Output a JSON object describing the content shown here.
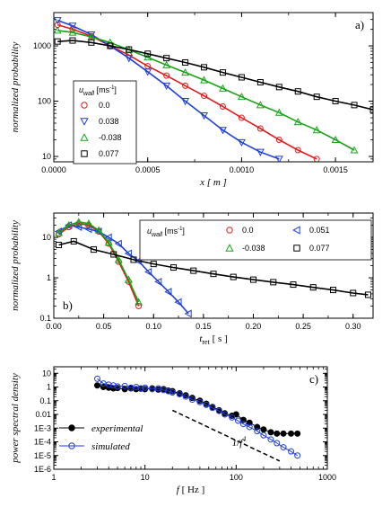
{
  "chart_data": [
    {
      "type": "scatter",
      "tag": "a)",
      "xlabel": "x [ m ]",
      "ylabel": "normalized probability",
      "xlim": [
        0,
        0.0017
      ],
      "ylim": [
        8,
        4000
      ],
      "yscale": "log",
      "xticks": [
        0,
        0.0005,
        0.001,
        0.0015
      ],
      "xticklabels": [
        "0.0000",
        "0.0005",
        "0.0010",
        "0.0015"
      ],
      "yticks": [
        10,
        100,
        1000
      ],
      "yticklabels": [
        "10",
        "100",
        "1000"
      ],
      "legend": {
        "title": "u_wall [ms-1]",
        "title_main": "u",
        "title_sub": "wall",
        "title_unit": "[ms",
        "title_sup": "-1",
        "title_close": "]",
        "position": "left-middle"
      },
      "series": [
        {
          "name": "0.0",
          "marker": "circle",
          "color": "#e11b1b",
          "x": [
            2e-05,
            0.0001,
            0.0002,
            0.0003,
            0.0004,
            0.0005,
            0.0006,
            0.0007,
            0.0008,
            0.0009,
            0.001,
            0.0011,
            0.0012,
            0.0013,
            0.0014
          ],
          "y": [
            2400,
            2000,
            1500,
            1000,
            680,
            430,
            290,
            190,
            125,
            80,
            50,
            32,
            20,
            13,
            9
          ]
        },
        {
          "name": "0.038",
          "marker": "triangle-down",
          "color": "#1f3fd6",
          "x": [
            2e-05,
            0.0001,
            0.0002,
            0.0003,
            0.0004,
            0.0005,
            0.0006,
            0.0007,
            0.0008,
            0.0009,
            0.001,
            0.0011,
            0.0012
          ],
          "y": [
            2900,
            2300,
            1600,
            1000,
            600,
            340,
            190,
            100,
            55,
            30,
            18,
            12,
            9
          ]
        },
        {
          "name": "-0.038",
          "marker": "triangle-up",
          "color": "#17a317",
          "x": [
            2e-05,
            0.0001,
            0.0002,
            0.0003,
            0.0004,
            0.0005,
            0.0006,
            0.0007,
            0.0008,
            0.0009,
            0.001,
            0.0011,
            0.0012,
            0.0013,
            0.0014,
            0.0015,
            0.0016
          ],
          "y": [
            1900,
            1750,
            1450,
            1150,
            850,
            620,
            450,
            330,
            240,
            170,
            120,
            85,
            62,
            42,
            30,
            20,
            13
          ]
        },
        {
          "name": "0.077",
          "marker": "square",
          "color": "#000000",
          "x": [
            2e-05,
            0.0001,
            0.0002,
            0.0003,
            0.0004,
            0.0005,
            0.0006,
            0.0007,
            0.0008,
            0.0009,
            0.001,
            0.0011,
            0.0012,
            0.0013,
            0.0014,
            0.0015,
            0.0016,
            0.0017
          ],
          "y": [
            1200,
            1250,
            1150,
            1000,
            860,
            720,
            600,
            500,
            410,
            330,
            270,
            220,
            180,
            150,
            120,
            100,
            85,
            70
          ]
        }
      ]
    },
    {
      "type": "scatter",
      "tag": "b)",
      "xlabel": "t_ret [ s ]",
      "xlabel_main": "t",
      "xlabel_sub": "ret",
      "xlabel_unit": " [ s ]",
      "ylabel": "normalized probability",
      "xlim": [
        0,
        0.32
      ],
      "ylim": [
        0.1,
        40
      ],
      "yscale": "log",
      "xticks": [
        0,
        0.05,
        0.1,
        0.15,
        0.2,
        0.25,
        0.3
      ],
      "xticklabels": [
        "0.00",
        "0.05",
        "0.10",
        "0.15",
        "0.20",
        "0.25",
        "0.30"
      ],
      "yticks": [
        0.1,
        1,
        10
      ],
      "yticklabels": [
        "0.1",
        "1",
        "10"
      ],
      "legend": {
        "title": "u_wall [ms-1]",
        "title_main": "u",
        "title_sub": "wall",
        "title_unit": "[ms",
        "title_sup": "-1",
        "title_close": "]",
        "position": "top-right"
      },
      "series": [
        {
          "name": "0.0",
          "marker": "circle",
          "color": "#e11b1b",
          "x": [
            0.005,
            0.015,
            0.025,
            0.035,
            0.045,
            0.055,
            0.065,
            0.075,
            0.085
          ],
          "y": [
            12,
            18,
            22,
            20,
            14,
            7,
            2.5,
            0.8,
            0.2
          ]
        },
        {
          "name": "0.051",
          "marker": "triangle-left",
          "color": "#1f3fd6",
          "x": [
            0.005,
            0.015,
            0.025,
            0.035,
            0.045,
            0.055,
            0.065,
            0.075,
            0.085,
            0.095,
            0.105,
            0.115,
            0.125,
            0.135
          ],
          "y": [
            14,
            20,
            18,
            16,
            14,
            10,
            7,
            4,
            2.6,
            1.4,
            0.8,
            0.45,
            0.25,
            0.13
          ]
        },
        {
          "name": "-0.038",
          "marker": "triangle-up",
          "color": "#17a317",
          "x": [
            0.005,
            0.015,
            0.025,
            0.035,
            0.045,
            0.055,
            0.065,
            0.075,
            0.085
          ],
          "y": [
            13,
            20,
            24,
            22,
            15,
            7.5,
            2.8,
            0.9,
            0.25
          ]
        },
        {
          "name": "0.077",
          "marker": "square",
          "color": "#000000",
          "x": [
            0.005,
            0.02,
            0.04,
            0.06,
            0.08,
            0.1,
            0.12,
            0.14,
            0.16,
            0.18,
            0.2,
            0.22,
            0.24,
            0.26,
            0.28,
            0.3,
            0.315
          ],
          "y": [
            6.5,
            8,
            5,
            3.8,
            2.8,
            2.2,
            1.8,
            1.5,
            1.25,
            1.05,
            0.9,
            0.78,
            0.68,
            0.58,
            0.5,
            0.42,
            0.38
          ]
        }
      ]
    },
    {
      "type": "line",
      "tag": "c)",
      "xlabel": "f [ Hz ]",
      "xlabel_main": "f",
      "xlabel_unit": " [ Hz ]",
      "ylabel": "power spectral density",
      "xscale": "log",
      "yscale": "log",
      "xlim": [
        1,
        1000
      ],
      "ylim": [
        1e-06,
        30
      ],
      "xticks": [
        1,
        10,
        100,
        1000
      ],
      "xticklabels": [
        "1",
        "10",
        "100",
        "1000"
      ],
      "yticks": [
        1e-06,
        1e-05,
        0.0001,
        0.001,
        0.01,
        0.1,
        1,
        10
      ],
      "yticklabels": [
        "1E-6",
        "1E-5",
        "1E-4",
        "1E-3",
        "0.01",
        "0.1",
        "1",
        "10"
      ],
      "annotation": {
        "text": "1/f4",
        "base": "1/f",
        "sup": "4"
      },
      "reference_line": {
        "style": "dashed",
        "x": [
          20,
          300
        ],
        "y": [
          0.02,
          4e-06
        ]
      },
      "legend": {
        "position": "bottom-left"
      },
      "series": [
        {
          "name": "experimental",
          "marker": "filled-circle",
          "color": "#000000",
          "x": [
            3,
            3.5,
            4,
            4.5,
            5,
            6,
            7,
            8,
            9,
            10,
            12,
            14,
            16,
            18,
            20,
            24,
            28,
            33,
            40,
            47,
            55,
            65,
            75,
            90,
            100,
            120,
            140,
            170,
            200,
            240,
            280,
            330,
            400,
            470
          ],
          "y": [
            1.3,
            1.0,
            0.9,
            0.8,
            0.85,
            0.7,
            0.8,
            0.7,
            0.75,
            0.7,
            0.8,
            0.65,
            0.7,
            0.55,
            0.5,
            0.35,
            0.25,
            0.16,
            0.1,
            0.06,
            0.035,
            0.02,
            0.012,
            0.008,
            0.01,
            0.004,
            0.0025,
            0.0012,
            0.0008,
            0.0005,
            0.0004,
            0.0004,
            0.0004,
            0.0004
          ]
        },
        {
          "name": "simulated",
          "marker": "open-circle",
          "color": "#1f3fd6",
          "x": [
            3,
            3.5,
            4,
            4.5,
            5,
            6,
            7,
            8,
            9,
            10,
            12,
            14,
            16,
            18,
            20,
            24,
            28,
            33,
            40,
            47,
            55,
            65,
            75,
            90,
            105,
            120,
            140,
            170,
            200,
            240,
            280,
            330,
            400,
            470
          ],
          "y": [
            4,
            1.8,
            1.5,
            1.3,
            1.1,
            1.2,
            0.9,
            1.0,
            0.8,
            0.9,
            0.7,
            0.8,
            0.6,
            0.5,
            0.4,
            0.3,
            0.2,
            0.12,
            0.08,
            0.05,
            0.03,
            0.018,
            0.01,
            0.006,
            0.0035,
            0.002,
            0.0012,
            0.0006,
            0.0003,
            0.00015,
            8e-05,
            4e-05,
            2e-05,
            1e-05
          ]
        }
      ]
    }
  ]
}
